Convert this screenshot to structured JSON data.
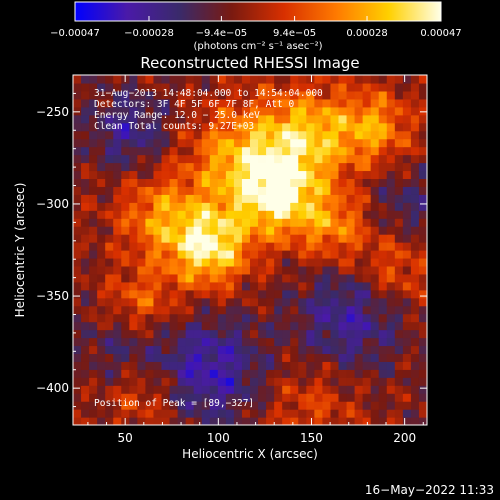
{
  "chart_data": {
    "type": "heatmap",
    "title": "Reconstructed RHESSI Image",
    "xlabel": "Heliocentric X (arcsec)",
    "ylabel": "Heliocentric Y (arcsec)",
    "xlim": [
      22,
      212
    ],
    "ylim": [
      -420,
      -230
    ],
    "x_ticks": [
      50,
      100,
      150,
      200
    ],
    "y_ticks": [
      -400,
      -350,
      -300,
      -250
    ],
    "x_tick_labels": [
      "50",
      "100",
      "150",
      "200"
    ],
    "y_tick_labels": [
      "−400",
      "−350",
      "−300",
      "−250"
    ],
    "colorbar": {
      "min": -0.00047,
      "max": 0.00047,
      "ticks": [
        -0.00047,
        -0.00028,
        -9.4e-05,
        9.4e-05,
        0.00028,
        0.00047
      ],
      "tick_labels": [
        "−0.00047",
        "−0.00028",
        "−9.4e−05",
        "9.4e−05",
        "0.00028",
        "0.00047"
      ],
      "unit_label": "(photons cm⁻² s⁻¹ asec⁻²)",
      "colormap_stops": [
        "#0000ff",
        "#4a1aa8",
        "#3a2a6a",
        "#7a1a10",
        "#d83000",
        "#ff7a00",
        "#ffd000",
        "#ffffe8"
      ]
    },
    "annotations": [
      "31−Aug−2013 14:48:04.000 to 14:54:04.000",
      "Detectors: 3F 4F 5F 6F 7F 8F, Att 0",
      "Energy Range: 12.0 − 25.0 keV",
      "Clean    Total counts: 9.27E+03"
    ],
    "peak_label": "Position of Peak = [89,−327]",
    "peak": [
      89,
      -327
    ],
    "sources": [
      {
        "x": 95,
        "y": -323,
        "amplitude": 1.0,
        "width": 15
      },
      {
        "x": 132,
        "y": -296,
        "amplitude": 0.85,
        "width": 15
      },
      {
        "x": 148,
        "y": -263,
        "amplitude": 0.75,
        "width": 18
      },
      {
        "x": 112,
        "y": -276,
        "amplitude": 0.7,
        "width": 20
      },
      {
        "x": 68,
        "y": -306,
        "amplitude": 0.55,
        "width": 16
      },
      {
        "x": 162,
        "y": -312,
        "amplitude": 0.55,
        "width": 14
      },
      {
        "x": 184,
        "y": -258,
        "amplitude": 0.6,
        "width": 14
      },
      {
        "x": 58,
        "y": -355,
        "amplitude": 0.5,
        "width": 14
      },
      {
        "x": 195,
        "y": -335,
        "amplitude": 0.4,
        "width": 14
      },
      {
        "x": 60,
        "y": -403,
        "amplitude": 0.35,
        "width": 14
      },
      {
        "x": 150,
        "y": -410,
        "amplitude": 0.3,
        "width": 18
      },
      {
        "x": 95,
        "y": -390,
        "amplitude": -0.6,
        "width": 20
      },
      {
        "x": 170,
        "y": -362,
        "amplitude": -0.5,
        "width": 20
      },
      {
        "x": 52,
        "y": -260,
        "amplitude": -0.45,
        "width": 15
      },
      {
        "x": 50,
        "y": -375,
        "amplitude": -0.35,
        "width": 16
      },
      {
        "x": 200,
        "y": -300,
        "amplitude": -0.3,
        "width": 14
      }
    ],
    "grid": false
  },
  "footer": {
    "timestamp": "16−May−2022 11:33"
  }
}
